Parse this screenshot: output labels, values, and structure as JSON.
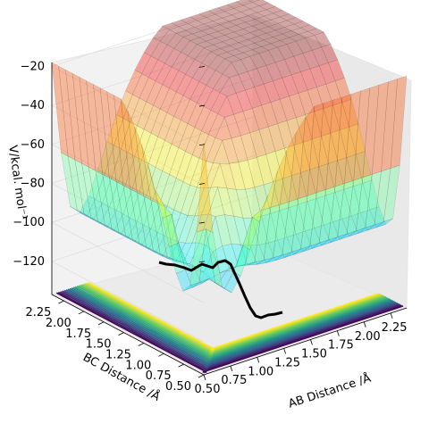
{
  "chart_data": {
    "type": "surface3d",
    "title": "",
    "xlabel": "AB Distance /Å",
    "ylabel": "BC Distance /Å",
    "zlabel": "V/kcal. mol⁻¹",
    "xticks": [
      "0.50",
      "0.75",
      "1.00",
      "1.25",
      "1.50",
      "1.75",
      "2.00",
      "2.25"
    ],
    "yticks": [
      "0.50",
      "0.75",
      "1.00",
      "1.25",
      "1.50",
      "1.75",
      "2.00",
      "2.25"
    ],
    "zticks": [
      "−120",
      "−100",
      "−80",
      "−60",
      "−40",
      "−20"
    ],
    "xlim": [
      0.5,
      2.4
    ],
    "ylim": [
      0.5,
      2.4
    ],
    "zlim": [
      -137,
      -18
    ],
    "surface_colormap": "jet",
    "surface_alpha": 0.35,
    "contour_colormap": "viridis",
    "trajectory_color": "#000000",
    "surface_samples": {
      "grid": [
        0.5,
        0.75,
        1.0,
        1.25,
        1.5,
        1.75,
        2.0,
        2.25,
        2.4
      ],
      "description_note": ""
    },
    "grid": true
  }
}
